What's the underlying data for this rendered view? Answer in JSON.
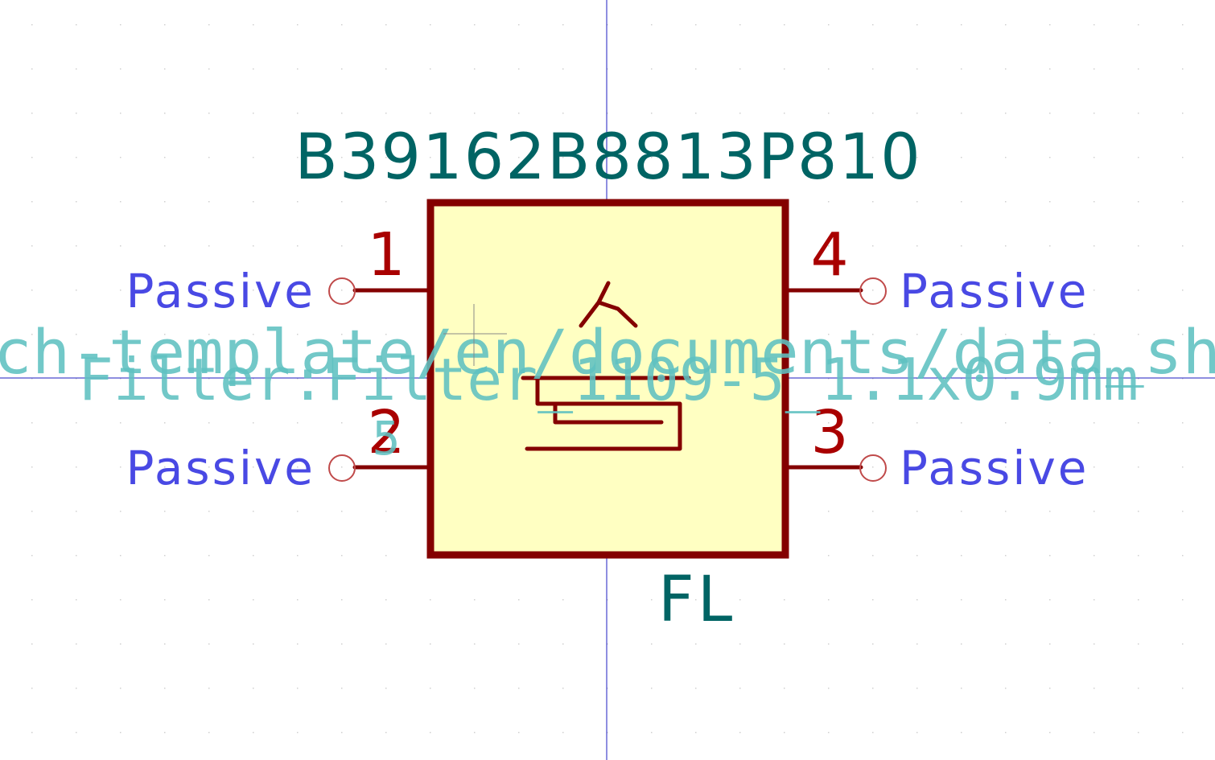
{
  "symbol": {
    "value": "B39162B8813P810",
    "reference": "FL",
    "footprint": "Filter:Filter_1109-5_1.1x0.9mm",
    "datasheet_fragment": "ch-template/en/documents/data_sh",
    "hidden_field_fragment": "5"
  },
  "pins": [
    {
      "number": "1",
      "type": "Passive",
      "side": "left"
    },
    {
      "number": "2",
      "type": "Passive",
      "side": "left"
    },
    {
      "number": "4",
      "type": "Passive",
      "side": "right"
    },
    {
      "number": "3",
      "type": "Passive",
      "side": "right"
    }
  ],
  "colors": {
    "background": "#ffffff",
    "body_fill": "#ffffc2",
    "body_stroke": "#840000",
    "pin_number": "#a90000",
    "pin_type": "#4949e4",
    "value_ref": "#006464",
    "hidden_field": "#5fc0c0",
    "grid_dot": "#d0d0d0",
    "axis": "#1d1dc0"
  }
}
